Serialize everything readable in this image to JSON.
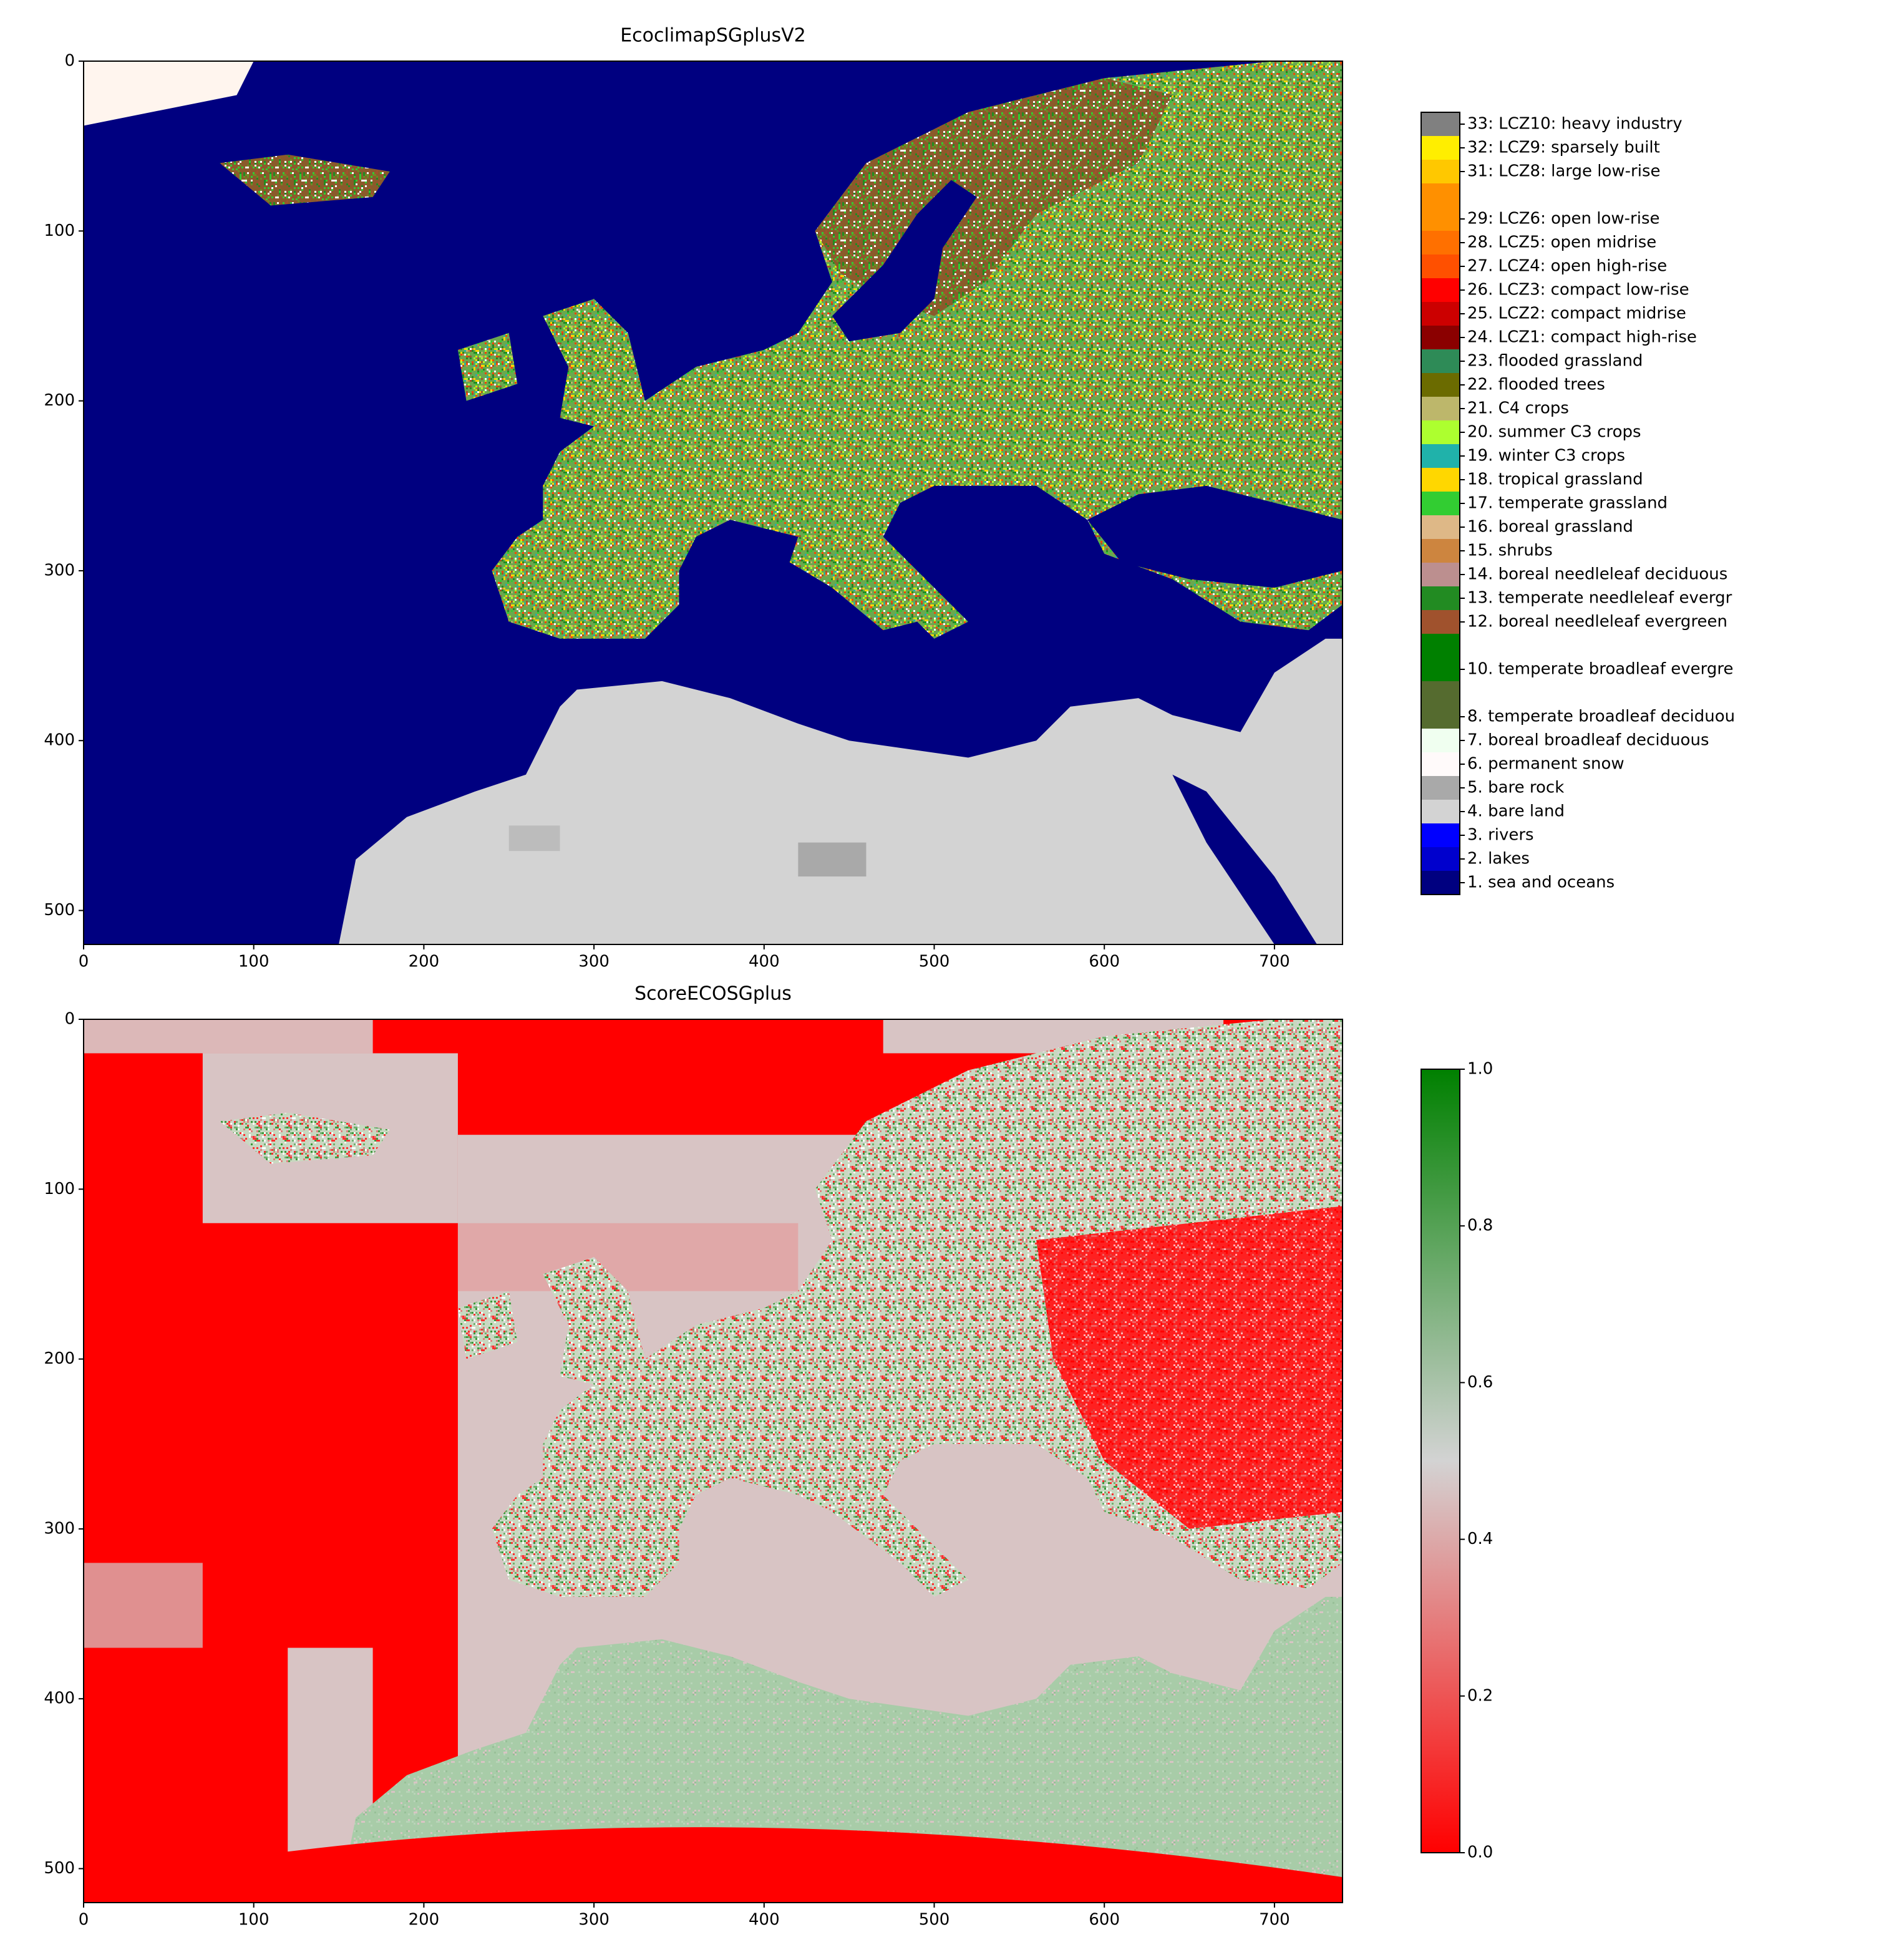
{
  "chart_data": [
    {
      "type": "image",
      "title": "EcoclimapSGplusV2",
      "xlim": [
        0,
        740
      ],
      "ylim": [
        520,
        0
      ],
      "xticks": [
        0,
        100,
        200,
        300,
        400,
        500,
        600,
        700
      ],
      "yticks": [
        0,
        100,
        200,
        300,
        400,
        500
      ],
      "colorbar": {
        "type": "categorical",
        "lim": [
          0.5,
          33.5
        ],
        "entries": [
          {
            "value": 33,
            "label": "33: LCZ10: heavy industry",
            "color": "#808080"
          },
          {
            "value": 32,
            "label": "32: LCZ9: sparsely built",
            "color": "#ffee00"
          },
          {
            "value": 31,
            "label": "31: LCZ8: large low-rise",
            "color": "#ffc800"
          },
          {
            "value": 29,
            "label": "29: LCZ6: open low-rise",
            "color": "#ff9000"
          },
          {
            "value": 28,
            "label": "28. LCZ5: open midrise",
            "color": "#ff7000"
          },
          {
            "value": 27,
            "label": "27. LCZ4: open high-rise",
            "color": "#ff5000"
          },
          {
            "value": 26,
            "label": "26. LCZ3: compact low-rise",
            "color": "#ff0000"
          },
          {
            "value": 25,
            "label": "25. LCZ2: compact midrise",
            "color": "#cc0000"
          },
          {
            "value": 24,
            "label": "24. LCZ1: compact high-rise",
            "color": "#8b0000"
          },
          {
            "value": 23,
            "label": "23. flooded grassland",
            "color": "#2e8b57"
          },
          {
            "value": 22,
            "label": "22. flooded trees",
            "color": "#6b6b00"
          },
          {
            "value": 21,
            "label": "21. C4 crops",
            "color": "#bdb76b"
          },
          {
            "value": 20,
            "label": "20. summer C3 crops",
            "color": "#adff2f"
          },
          {
            "value": 19,
            "label": "19. winter C3 crops",
            "color": "#20b2aa"
          },
          {
            "value": 18,
            "label": "18. tropical grassland",
            "color": "#ffd700"
          },
          {
            "value": 17,
            "label": "17. temperate grassland",
            "color": "#32cd32"
          },
          {
            "value": 16,
            "label": "16. boreal grassland",
            "color": "#deb887"
          },
          {
            "value": 15,
            "label": "15. shrubs",
            "color": "#cd853f"
          },
          {
            "value": 14,
            "label": "14. boreal needleleaf deciduous",
            "color": "#bc8f8f"
          },
          {
            "value": 13,
            "label": "13. temperate needleleaf evergr",
            "color": "#228b22"
          },
          {
            "value": 12,
            "label": "12. boreal needleleaf evergreen",
            "color": "#a0522d"
          },
          {
            "value": 10,
            "label": "10. temperate broadleaf evergre",
            "color": "#008000"
          },
          {
            "value": 8,
            "label": "8. temperate broadleaf deciduou",
            "color": "#556b2f"
          },
          {
            "value": 7,
            "label": "7. boreal broadleaf deciduous",
            "color": "#f0fff0"
          },
          {
            "value": 6,
            "label": "6. permanent snow",
            "color": "#fffafa"
          },
          {
            "value": 5,
            "label": "5. bare rock",
            "color": "#a9a9a9"
          },
          {
            "value": 4,
            "label": "4. bare land",
            "color": "#d3d3d3"
          },
          {
            "value": 3,
            "label": "3. rivers",
            "color": "#0000ff"
          },
          {
            "value": 2,
            "label": "2. lakes",
            "color": "#0000cd"
          },
          {
            "value": 1,
            "label": "1. sea and oceans",
            "color": "#000080"
          }
        ]
      }
    },
    {
      "type": "image",
      "title": "ScoreECOSGplus",
      "xlim": [
        0,
        740
      ],
      "ylim": [
        520,
        0
      ],
      "xticks": [
        0,
        100,
        200,
        300,
        400,
        500,
        600,
        700
      ],
      "yticks": [
        0,
        100,
        200,
        300,
        400,
        500
      ],
      "colorbar": {
        "type": "continuous",
        "lim": [
          0,
          1
        ],
        "ticks": [
          {
            "value": 0,
            "label": "0.0"
          },
          0.2,
          0.4,
          0.6,
          0.8,
          {
            "value": 1,
            "label": "1.0"
          }
        ],
        "colors": [
          "#ff0000",
          "#d3d3d3",
          "#008000"
        ]
      }
    }
  ]
}
